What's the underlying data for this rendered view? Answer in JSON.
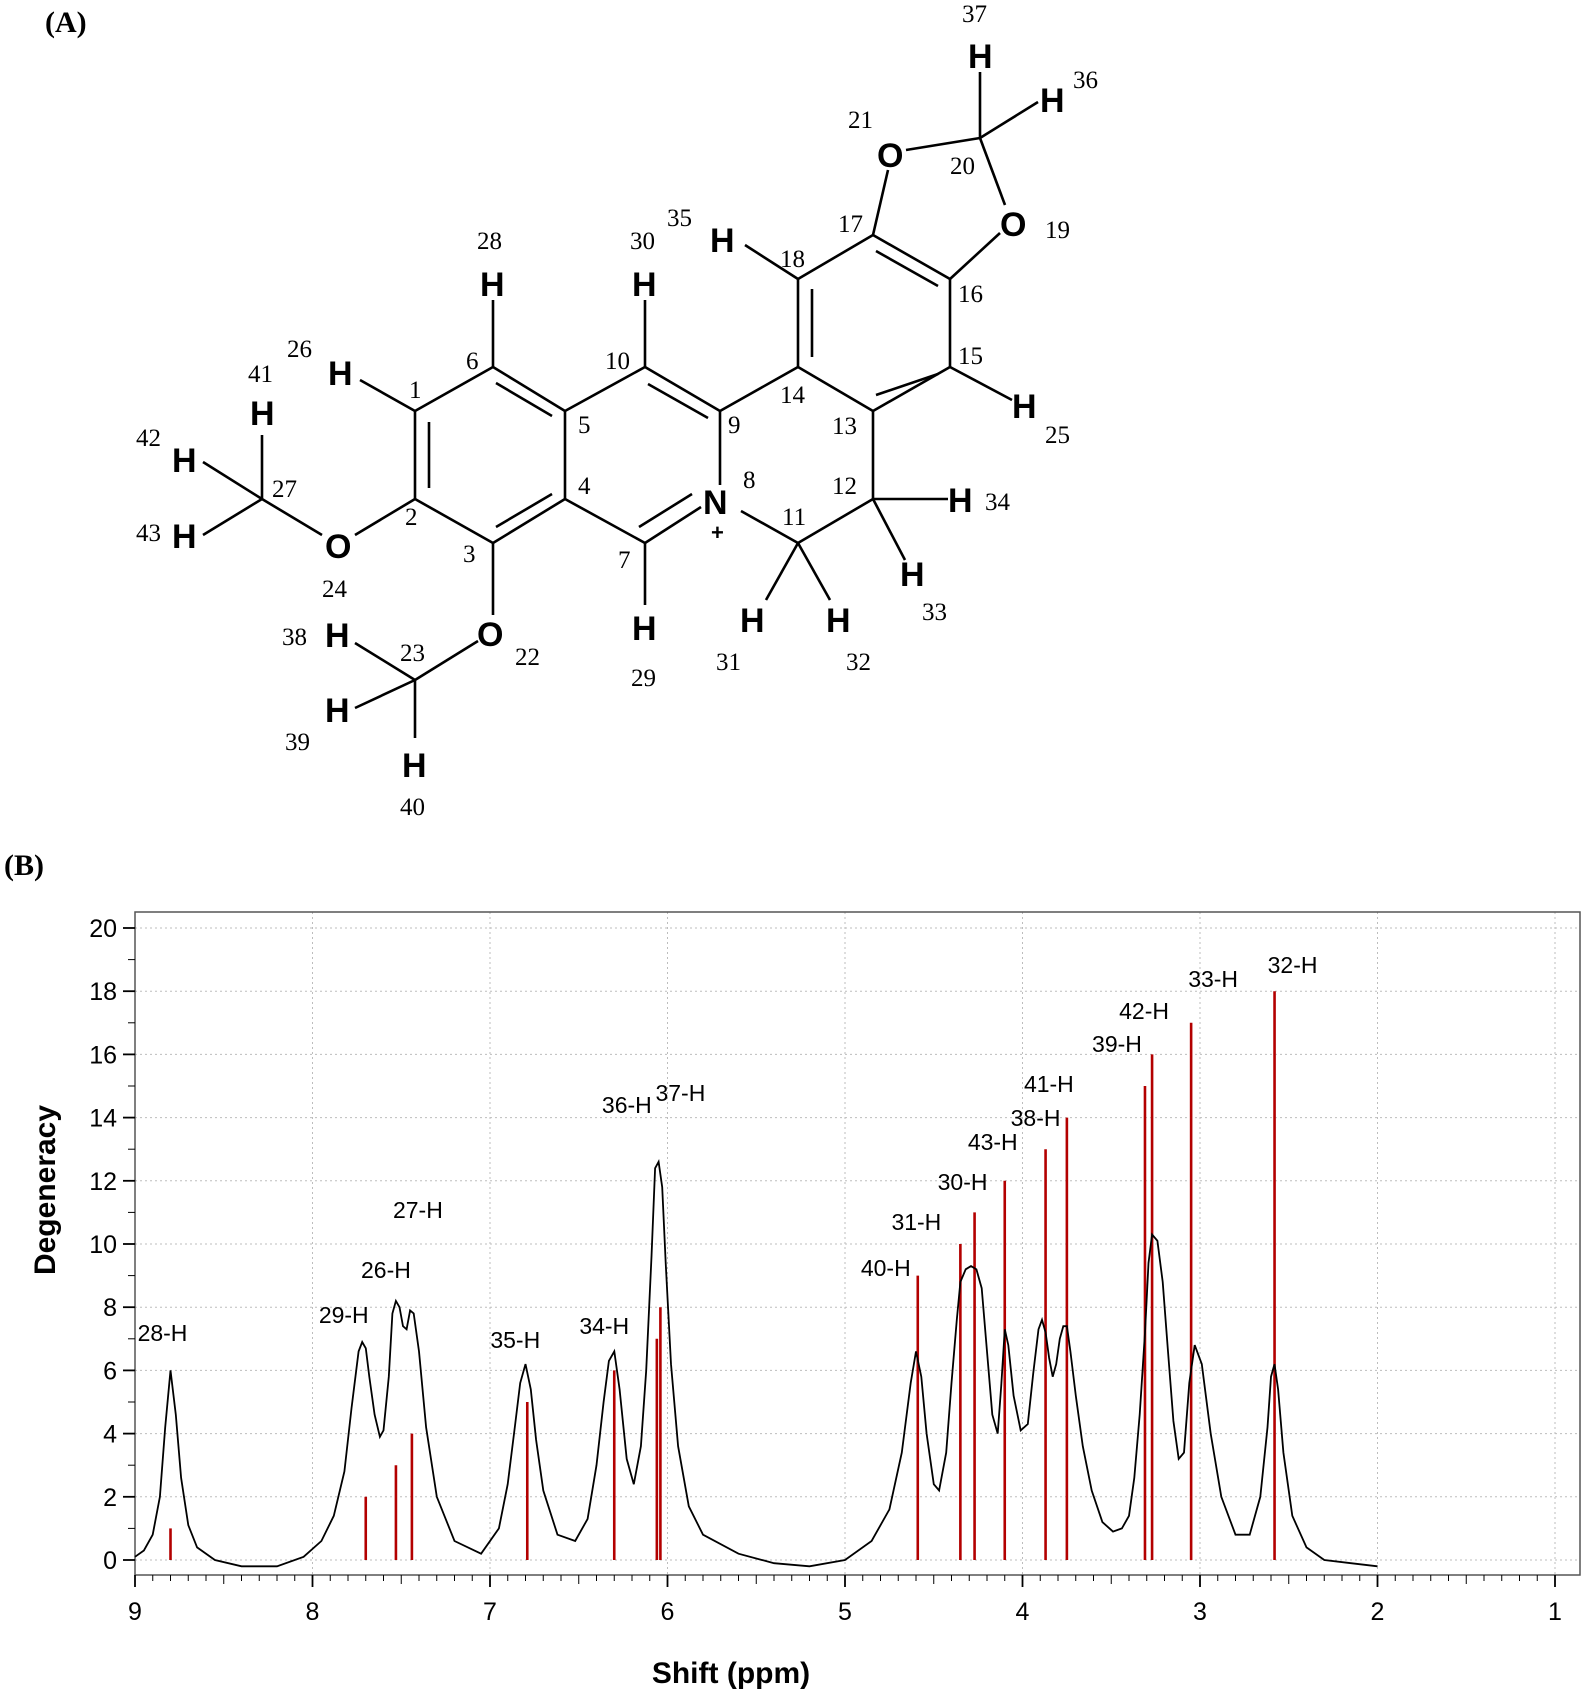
{
  "panels": {
    "a": "(A)",
    "b": "(B)"
  },
  "molecule": {
    "atoms": [
      {
        "id": "1",
        "el": "C"
      },
      {
        "id": "2",
        "el": "C"
      },
      {
        "id": "3",
        "el": "C"
      },
      {
        "id": "4",
        "el": "C"
      },
      {
        "id": "5",
        "el": "C"
      },
      {
        "id": "6",
        "el": "C"
      },
      {
        "id": "7",
        "el": "C"
      },
      {
        "id": "8",
        "el": "N",
        "charge": "+"
      },
      {
        "id": "9",
        "el": "C"
      },
      {
        "id": "10",
        "el": "C"
      },
      {
        "id": "11",
        "el": "C"
      },
      {
        "id": "12",
        "el": "C"
      },
      {
        "id": "13",
        "el": "C"
      },
      {
        "id": "14",
        "el": "C"
      },
      {
        "id": "15",
        "el": "C"
      },
      {
        "id": "16",
        "el": "C"
      },
      {
        "id": "17",
        "el": "C"
      },
      {
        "id": "18",
        "el": "C"
      },
      {
        "id": "19",
        "el": "O"
      },
      {
        "id": "20",
        "el": "C"
      },
      {
        "id": "21",
        "el": "O"
      },
      {
        "id": "22",
        "el": "O"
      },
      {
        "id": "23",
        "el": "C"
      },
      {
        "id": "24",
        "el": "O"
      },
      {
        "id": "25",
        "el": "H"
      },
      {
        "id": "26",
        "el": "H"
      },
      {
        "id": "27",
        "el": "C"
      },
      {
        "id": "28",
        "el": "H"
      },
      {
        "id": "29",
        "el": "H"
      },
      {
        "id": "30",
        "el": "H"
      },
      {
        "id": "31",
        "el": "H"
      },
      {
        "id": "32",
        "el": "H"
      },
      {
        "id": "33",
        "el": "H"
      },
      {
        "id": "34",
        "el": "H"
      },
      {
        "id": "35",
        "el": "H"
      },
      {
        "id": "36",
        "el": "H"
      },
      {
        "id": "37",
        "el": "H"
      },
      {
        "id": "38",
        "el": "H"
      },
      {
        "id": "39",
        "el": "H"
      },
      {
        "id": "40",
        "el": "H"
      },
      {
        "id": "41",
        "el": "H"
      },
      {
        "id": "42",
        "el": "H"
      },
      {
        "id": "43",
        "el": "H"
      }
    ]
  },
  "chart_data": {
    "type": "line",
    "xlabel": "Shift (ppm)",
    "ylabel": "Degeneracy",
    "xlim": [
      9,
      1
    ],
    "ylim": [
      0,
      20
    ],
    "xticks": [
      9,
      8,
      7,
      6,
      5,
      4,
      3,
      2,
      1
    ],
    "yticks": [
      0,
      2,
      4,
      6,
      8,
      10,
      12,
      14,
      16,
      18,
      20
    ],
    "grid": true,
    "stick_color": "#b30000",
    "curve_color": "#000000",
    "sticks": [
      {
        "label": "28-H",
        "shift": 8.8,
        "degeneracy": 1
      },
      {
        "label": "29-H",
        "shift": 7.7,
        "degeneracy": 2
      },
      {
        "label": "26-H",
        "shift": 7.53,
        "degeneracy": 3
      },
      {
        "label": "27-H",
        "shift": 7.44,
        "degeneracy": 4
      },
      {
        "label": "35-H",
        "shift": 6.79,
        "degeneracy": 5
      },
      {
        "label": "34-H",
        "shift": 6.3,
        "degeneracy": 6
      },
      {
        "label": "36-H",
        "shift": 6.06,
        "degeneracy": 7
      },
      {
        "label": "37-H",
        "shift": 6.04,
        "degeneracy": 8
      },
      {
        "label": "40-H",
        "shift": 4.59,
        "degeneracy": 9
      },
      {
        "label": "31-H",
        "shift": 4.35,
        "degeneracy": 10
      },
      {
        "label": "30-H",
        "shift": 4.27,
        "degeneracy": 11
      },
      {
        "label": "43-H",
        "shift": 4.1,
        "degeneracy": 12
      },
      {
        "label": "38-H",
        "shift": 3.87,
        "degeneracy": 13
      },
      {
        "label": "41-H",
        "shift": 3.75,
        "degeneracy": 14
      },
      {
        "label": "39-H",
        "shift": 3.31,
        "degeneracy": 15
      },
      {
        "label": "42-H",
        "shift": 3.27,
        "degeneracy": 16
      },
      {
        "label": "33-H",
        "shift": 3.05,
        "degeneracy": 17
      },
      {
        "label": "32-H",
        "shift": 2.58,
        "degeneracy": 18
      }
    ],
    "envelope": {
      "x": [
        9.0,
        8.95,
        8.9,
        8.86,
        8.83,
        8.8,
        8.77,
        8.74,
        8.7,
        8.65,
        8.55,
        8.4,
        8.2,
        8.05,
        7.95,
        7.88,
        7.82,
        7.78,
        7.74,
        7.72,
        7.7,
        7.68,
        7.65,
        7.62,
        7.6,
        7.57,
        7.55,
        7.53,
        7.51,
        7.49,
        7.47,
        7.45,
        7.43,
        7.4,
        7.36,
        7.3,
        7.2,
        7.05,
        6.95,
        6.9,
        6.86,
        6.83,
        6.8,
        6.77,
        6.74,
        6.7,
        6.62,
        6.52,
        6.45,
        6.4,
        6.36,
        6.33,
        6.3,
        6.27,
        6.23,
        6.19,
        6.15,
        6.12,
        6.09,
        6.07,
        6.05,
        6.03,
        6.01,
        5.98,
        5.94,
        5.88,
        5.8,
        5.6,
        5.4,
        5.2,
        5.0,
        4.85,
        4.75,
        4.68,
        4.63,
        4.6,
        4.57,
        4.54,
        4.5,
        4.47,
        4.43,
        4.4,
        4.37,
        4.35,
        4.32,
        4.29,
        4.26,
        4.23,
        4.2,
        4.17,
        4.14,
        4.12,
        4.1,
        4.08,
        4.05,
        4.01,
        3.97,
        3.94,
        3.91,
        3.89,
        3.87,
        3.85,
        3.83,
        3.81,
        3.79,
        3.77,
        3.75,
        3.73,
        3.7,
        3.66,
        3.61,
        3.55,
        3.49,
        3.44,
        3.4,
        3.37,
        3.34,
        3.31,
        3.29,
        3.27,
        3.24,
        3.21,
        3.18,
        3.15,
        3.12,
        3.09,
        3.06,
        3.03,
        2.99,
        2.94,
        2.88,
        2.8,
        2.72,
        2.66,
        2.62,
        2.6,
        2.58,
        2.56,
        2.53,
        2.48,
        2.4,
        2.3,
        2.15,
        2.0
      ],
      "y": [
        0.1,
        0.3,
        0.8,
        2.0,
        4.2,
        6.0,
        4.6,
        2.6,
        1.1,
        0.4,
        0.0,
        -0.2,
        -0.2,
        0.1,
        0.6,
        1.4,
        2.8,
        4.8,
        6.6,
        6.9,
        6.7,
        5.8,
        4.6,
        3.9,
        4.1,
        5.8,
        7.8,
        8.2,
        8.0,
        7.4,
        7.3,
        7.9,
        7.8,
        6.6,
        4.2,
        2.0,
        0.6,
        0.2,
        1.0,
        2.4,
        4.2,
        5.6,
        6.2,
        5.4,
        3.8,
        2.2,
        0.8,
        0.6,
        1.3,
        3.0,
        5.0,
        6.3,
        6.6,
        5.4,
        3.2,
        2.4,
        3.6,
        6.0,
        9.6,
        12.4,
        12.6,
        11.8,
        9.4,
        6.2,
        3.6,
        1.7,
        0.8,
        0.2,
        -0.1,
        -0.2,
        0.0,
        0.6,
        1.6,
        3.4,
        5.6,
        6.6,
        5.8,
        4.0,
        2.4,
        2.2,
        3.4,
        5.6,
        7.6,
        8.8,
        9.2,
        9.3,
        9.2,
        8.6,
        6.6,
        4.6,
        4.0,
        5.5,
        7.3,
        6.8,
        5.2,
        4.1,
        4.3,
        5.9,
        7.3,
        7.6,
        7.2,
        6.4,
        5.8,
        6.2,
        7.0,
        7.4,
        7.4,
        6.6,
        5.2,
        3.6,
        2.2,
        1.2,
        0.9,
        1.0,
        1.4,
        2.6,
        4.6,
        7.2,
        9.4,
        10.3,
        10.1,
        8.8,
        6.6,
        4.4,
        3.2,
        3.4,
        5.6,
        6.8,
        6.2,
        4.0,
        2.0,
        0.8,
        0.8,
        2.0,
        4.2,
        5.8,
        6.2,
        5.4,
        3.4,
        1.4,
        0.4,
        0.0,
        -0.1,
        -0.2
      ]
    }
  }
}
